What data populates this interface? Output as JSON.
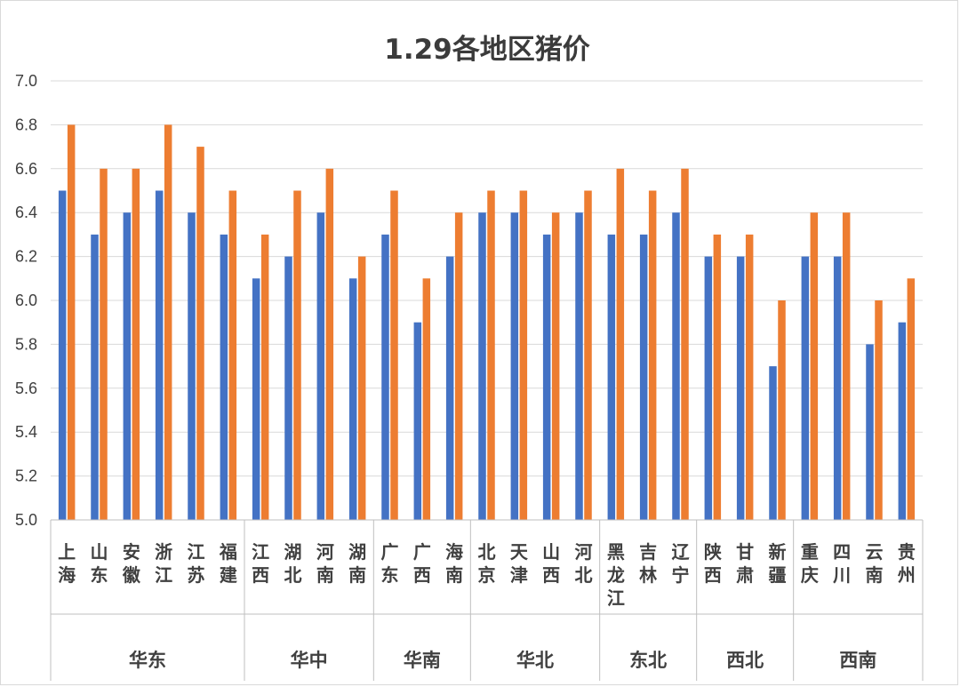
{
  "chart_data": {
    "type": "bar",
    "title": "1.29各地区猪价",
    "ylim": [
      5.0,
      7.0
    ],
    "yticks": [
      "5.0",
      "5.2",
      "5.4",
      "5.6",
      "5.8",
      "6.0",
      "6.2",
      "6.4",
      "6.6",
      "6.8",
      "7.0"
    ],
    "grid": true,
    "legend": "none",
    "categories": [
      "上海",
      "山东",
      "安徽",
      "浙江",
      "江苏",
      "福建",
      "江西",
      "湖北",
      "河南",
      "湖南",
      "广东",
      "广西",
      "海南",
      "北京",
      "天津",
      "山西",
      "河北",
      "黑龙江",
      "吉林",
      "辽宁",
      "陕西",
      "甘肃",
      "新疆",
      "重庆",
      "四川",
      "云南",
      "贵州"
    ],
    "groups": [
      {
        "name": "华东",
        "start": 0,
        "count": 6
      },
      {
        "name": "华中",
        "start": 6,
        "count": 4
      },
      {
        "name": "华南",
        "start": 10,
        "count": 3
      },
      {
        "name": "华北",
        "start": 13,
        "count": 4
      },
      {
        "name": "东北",
        "start": 17,
        "count": 3
      },
      {
        "name": "西北",
        "start": 20,
        "count": 3
      },
      {
        "name": "西南",
        "start": 23,
        "count": 4
      }
    ],
    "series": [
      {
        "color": "#4472c4",
        "values": [
          6.5,
          6.3,
          6.4,
          6.5,
          6.4,
          6.3,
          6.1,
          6.2,
          6.4,
          6.1,
          6.3,
          5.9,
          6.2,
          6.4,
          6.4,
          6.3,
          6.4,
          6.3,
          6.3,
          6.4,
          6.2,
          6.2,
          5.7,
          6.2,
          6.2,
          5.8,
          5.9
        ]
      },
      {
        "color": "#ed7d31",
        "values": [
          6.8,
          6.6,
          6.6,
          6.8,
          6.7,
          6.5,
          6.3,
          6.5,
          6.6,
          6.2,
          6.5,
          6.1,
          6.4,
          6.5,
          6.5,
          6.4,
          6.5,
          6.6,
          6.5,
          6.6,
          6.3,
          6.3,
          6.0,
          6.4,
          6.4,
          6.0,
          6.1
        ]
      }
    ]
  },
  "colors": {
    "grid": "#d9d9d9",
    "axis": "#bfbfbf",
    "text": "#404040"
  }
}
